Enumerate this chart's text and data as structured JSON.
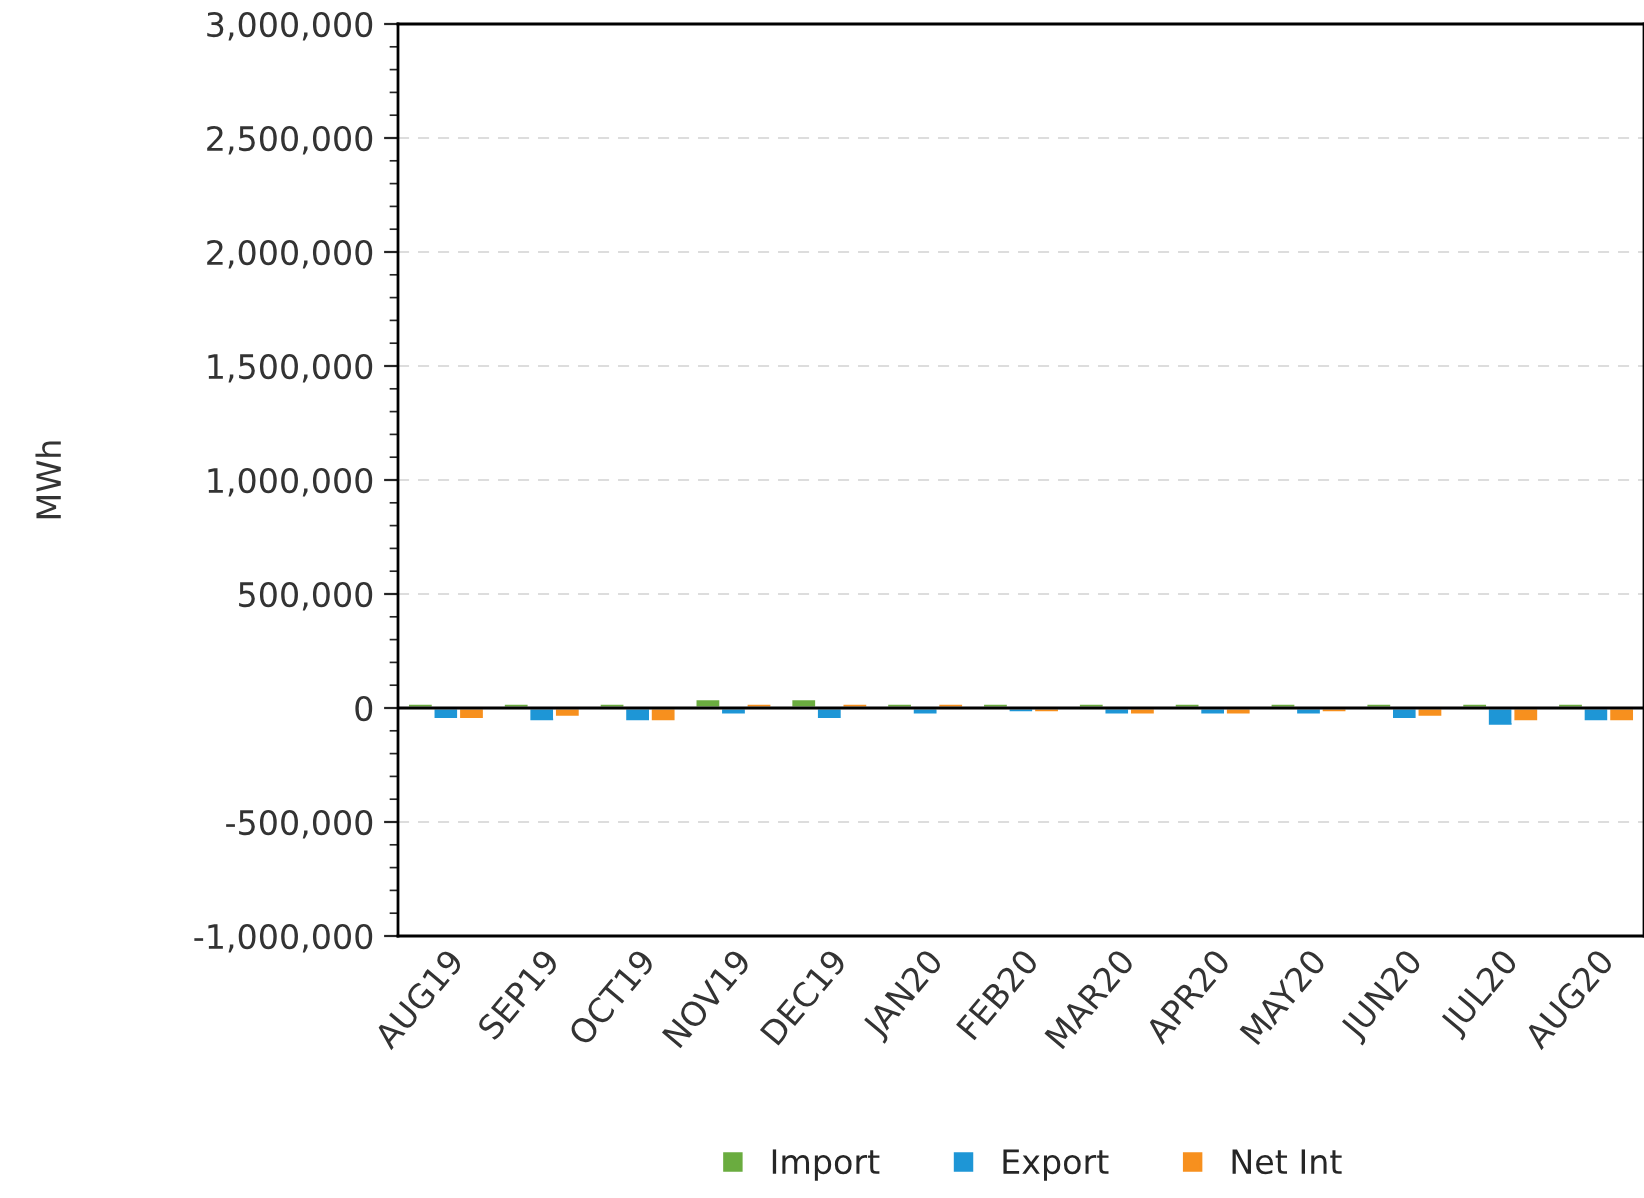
{
  "chart_data": {
    "type": "bar",
    "ylabel": "MWh",
    "categories": [
      "AUG19",
      "SEP19",
      "OCT19",
      "NOV19",
      "DEC19",
      "JAN20",
      "FEB20",
      "MAR20",
      "APR20",
      "MAY20",
      "JUN20",
      "JUL20",
      "AUG20"
    ],
    "series": [
      {
        "name": "Import",
        "color": "#6aac3f",
        "values": [
          20000,
          20000,
          20000,
          40000,
          40000,
          20000,
          20000,
          20000,
          20000,
          20000,
          20000,
          20000,
          20000
        ]
      },
      {
        "name": "Export",
        "color": "#1e96d6",
        "values": [
          -50000,
          -60000,
          -60000,
          -30000,
          -50000,
          -30000,
          -20000,
          -30000,
          -30000,
          -30000,
          -50000,
          -80000,
          -60000
        ]
      },
      {
        "name": "Net Int",
        "color": "#f7901e",
        "values": [
          -50000,
          -40000,
          -60000,
          20000,
          20000,
          20000,
          -20000,
          -30000,
          -30000,
          -20000,
          -40000,
          -60000,
          -60000
        ]
      }
    ],
    "ylim": [
      -1000000,
      3000000
    ],
    "yticks": [
      {
        "value": -1000000,
        "label": "-1,000,000"
      },
      {
        "value": -500000,
        "label": "-500,000"
      },
      0,
      {
        "value": 500000,
        "label": "500,000"
      },
      {
        "value": 1000000,
        "label": "1,000,000"
      },
      {
        "value": 1500000,
        "label": "1,500,000"
      },
      {
        "value": 2000000,
        "label": "2,000,000"
      },
      {
        "value": 2500000,
        "label": "2,500,000"
      },
      {
        "value": 3000000,
        "label": "3,000,000"
      }
    ],
    "grid": "y",
    "legend": "bottom"
  }
}
